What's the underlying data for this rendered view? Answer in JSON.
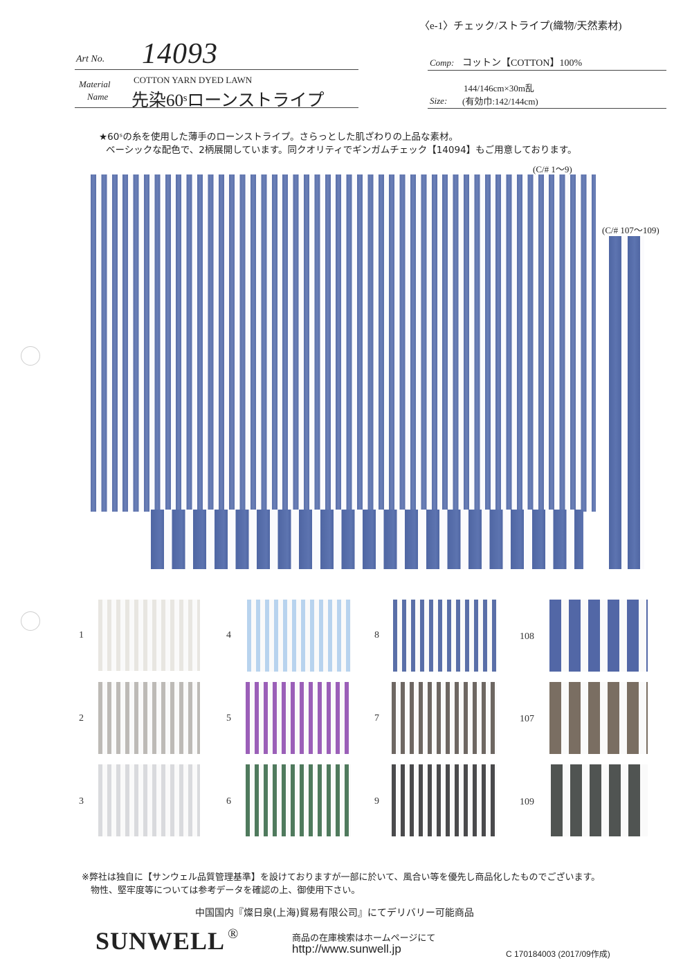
{
  "category": "〈e-1〉チェック/ストライプ(織物/天然素材)",
  "art_no_label": "Art No.",
  "art_no": "14093",
  "material_label_1": "Material",
  "material_label_2": "Name",
  "material_en": "COTTON YARN DYED LAWN",
  "material_jp": "先染60ˢローンストライプ",
  "comp_label": "Comp:",
  "comp_value": "コットン【COTTON】100%",
  "size_label": "Size:",
  "size_line1": "144/146cm×30m乱",
  "size_line2": "(有効巾:142/144cm)",
  "description_line1": "★60ˢの糸を使用した薄手のローンストライプ。さらっとした肌ざわりの上品な素材。",
  "description_line2": "ベーシックな配色で、2柄展開しています。同クオリティでギンガムチェック【14094】もご用意しております。",
  "main_group_label": "(C/# 1〜9)",
  "wide_group_label": "(C/# 107〜109)",
  "swatches": [
    {
      "label": "1",
      "color": "#e8e6e1"
    },
    {
      "label": "4",
      "color": "#b8d3ee"
    },
    {
      "label": "8",
      "color": "#5a6fa8"
    },
    {
      "label": "108",
      "color": "#5267a6"
    },
    {
      "label": "2",
      "color": "#bdbab6"
    },
    {
      "label": "5",
      "color": "#9b5fb8"
    },
    {
      "label": "7",
      "color": "#6e6762"
    },
    {
      "label": "107",
      "color": "#7a6e62"
    },
    {
      "label": "3",
      "color": "#d9dadd"
    },
    {
      "label": "6",
      "color": "#4f7a5d"
    },
    {
      "label": "9",
      "color": "#4a4a4c"
    },
    {
      "label": "109",
      "color": "#505452"
    }
  ],
  "notice_line1": "※弊社は独自に【サンウェル品質管理基準】を設けておりますが一部に於いて、風合い等を優先し商品化したものでございます。",
  "notice_line2": "物性、堅牢度等については参考データを確認の上、御使用下さい。",
  "delivery_note": "中国国内『燦日泉(上海)貿易有限公司』にてデリバリー可能商品",
  "brand": "SUNWELL",
  "brand_mark": "®",
  "stock_note": "商品の在庫検索はホームページにて",
  "url": "http://www.sunwell.jp",
  "doc_code": "C 170184003",
  "doc_date": "(2017/09作成)"
}
